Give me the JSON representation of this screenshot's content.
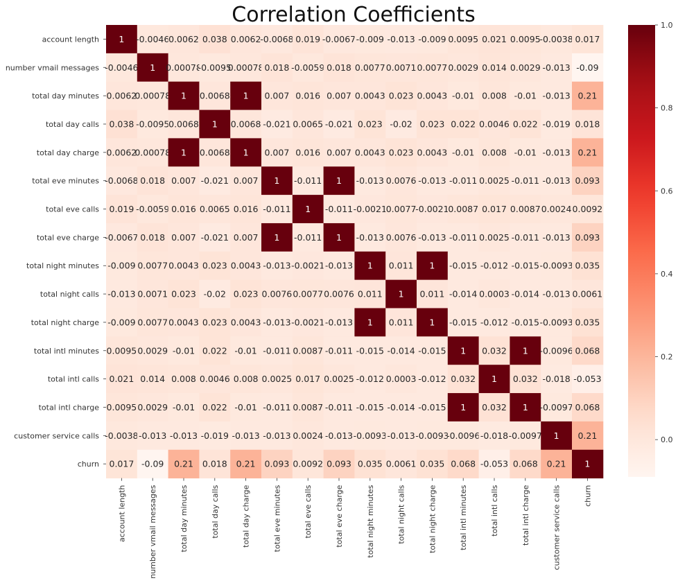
{
  "chart_data": {
    "type": "heatmap",
    "title": "Correlation Coefficients",
    "colormap": "Reds",
    "vmin": -0.09,
    "vmax": 1,
    "labels": [
      "account length",
      "number vmail messages",
      "total day minutes",
      "total day calls",
      "total day charge",
      "total eve minutes",
      "total eve calls",
      "total eve charge",
      "total night minutes",
      "total night calls",
      "total night charge",
      "total intl minutes",
      "total intl calls",
      "total intl charge",
      "customer service calls",
      "churn"
    ],
    "values": [
      [
        1,
        -0.0046,
        0.0062,
        0.038,
        0.0062,
        -0.0068,
        0.019,
        -0.0067,
        -0.009,
        -0.013,
        -0.009,
        0.0095,
        0.021,
        0.0095,
        -0.0038,
        0.017
      ],
      [
        -0.0046,
        1,
        0.00078,
        -0.0095,
        0.00078,
        0.018,
        -0.0059,
        0.018,
        0.0077,
        0.0071,
        0.0077,
        0.0029,
        0.014,
        0.0029,
        -0.013,
        -0.09
      ],
      [
        0.0062,
        0.00078,
        1,
        0.0068,
        1,
        0.007,
        0.016,
        0.007,
        0.0043,
        0.023,
        0.0043,
        -0.01,
        0.008,
        -0.01,
        -0.013,
        0.21
      ],
      [
        0.038,
        -0.0095,
        0.0068,
        1,
        0.0068,
        -0.021,
        0.0065,
        -0.021,
        0.023,
        -0.02,
        0.023,
        0.022,
        0.0046,
        0.022,
        -0.019,
        0.018
      ],
      [
        0.0062,
        0.00078,
        1,
        0.0068,
        1,
        0.007,
        0.016,
        0.007,
        0.0043,
        0.023,
        0.0043,
        -0.01,
        0.008,
        -0.01,
        -0.013,
        0.21
      ],
      [
        -0.0068,
        0.018,
        0.007,
        -0.021,
        0.007,
        1,
        -0.011,
        1,
        -0.013,
        0.0076,
        -0.013,
        -0.011,
        0.0025,
        -0.011,
        -0.013,
        0.093
      ],
      [
        0.019,
        -0.0059,
        0.016,
        0.0065,
        0.016,
        -0.011,
        1,
        -0.011,
        -0.0021,
        0.0077,
        -0.0021,
        0.0087,
        0.017,
        0.0087,
        0.0024,
        0.0092
      ],
      [
        -0.0067,
        0.018,
        0.007,
        -0.021,
        0.007,
        1,
        -0.011,
        1,
        -0.013,
        0.0076,
        -0.013,
        -0.011,
        0.0025,
        -0.011,
        -0.013,
        0.093
      ],
      [
        -0.009,
        0.0077,
        0.0043,
        0.023,
        0.0043,
        -0.013,
        -0.0021,
        -0.013,
        1,
        0.011,
        1,
        -0.015,
        -0.012,
        -0.015,
        -0.0093,
        0.035
      ],
      [
        -0.013,
        0.0071,
        0.023,
        -0.02,
        0.023,
        0.0076,
        0.0077,
        0.0076,
        0.011,
        1,
        0.011,
        -0.014,
        0.0003,
        -0.014,
        -0.013,
        0.0061
      ],
      [
        -0.009,
        0.0077,
        0.0043,
        0.023,
        0.0043,
        -0.013,
        -0.0021,
        -0.013,
        1,
        0.011,
        1,
        -0.015,
        -0.012,
        -0.015,
        -0.0093,
        0.035
      ],
      [
        0.0095,
        0.0029,
        -0.01,
        0.022,
        -0.01,
        -0.011,
        0.0087,
        -0.011,
        -0.015,
        -0.014,
        -0.015,
        1,
        0.032,
        1,
        -0.0096,
        0.068
      ],
      [
        0.021,
        0.014,
        0.008,
        0.0046,
        0.008,
        0.0025,
        0.017,
        0.0025,
        -0.012,
        0.0003,
        -0.012,
        0.032,
        1,
        0.032,
        -0.018,
        -0.053
      ],
      [
        0.0095,
        0.0029,
        -0.01,
        0.022,
        -0.01,
        -0.011,
        0.0087,
        -0.011,
        -0.015,
        -0.014,
        -0.015,
        1,
        0.032,
        1,
        -0.0097,
        0.068
      ],
      [
        -0.0038,
        -0.013,
        -0.013,
        -0.019,
        -0.013,
        -0.013,
        0.0024,
        -0.013,
        -0.0093,
        -0.013,
        -0.0093,
        -0.0096,
        -0.018,
        -0.0097,
        1,
        0.21
      ],
      [
        0.017,
        -0.09,
        0.21,
        0.018,
        0.21,
        0.093,
        0.0092,
        0.093,
        0.035,
        0.0061,
        0.035,
        0.068,
        -0.053,
        0.068,
        0.21,
        1
      ]
    ],
    "colorbar": {
      "ticks": [
        0.0,
        0.2,
        0.4,
        0.6,
        0.8,
        1.0
      ],
      "tick_labels": [
        "0.0",
        "0.2",
        "0.4",
        "0.6",
        "0.8",
        "1.0"
      ]
    }
  }
}
